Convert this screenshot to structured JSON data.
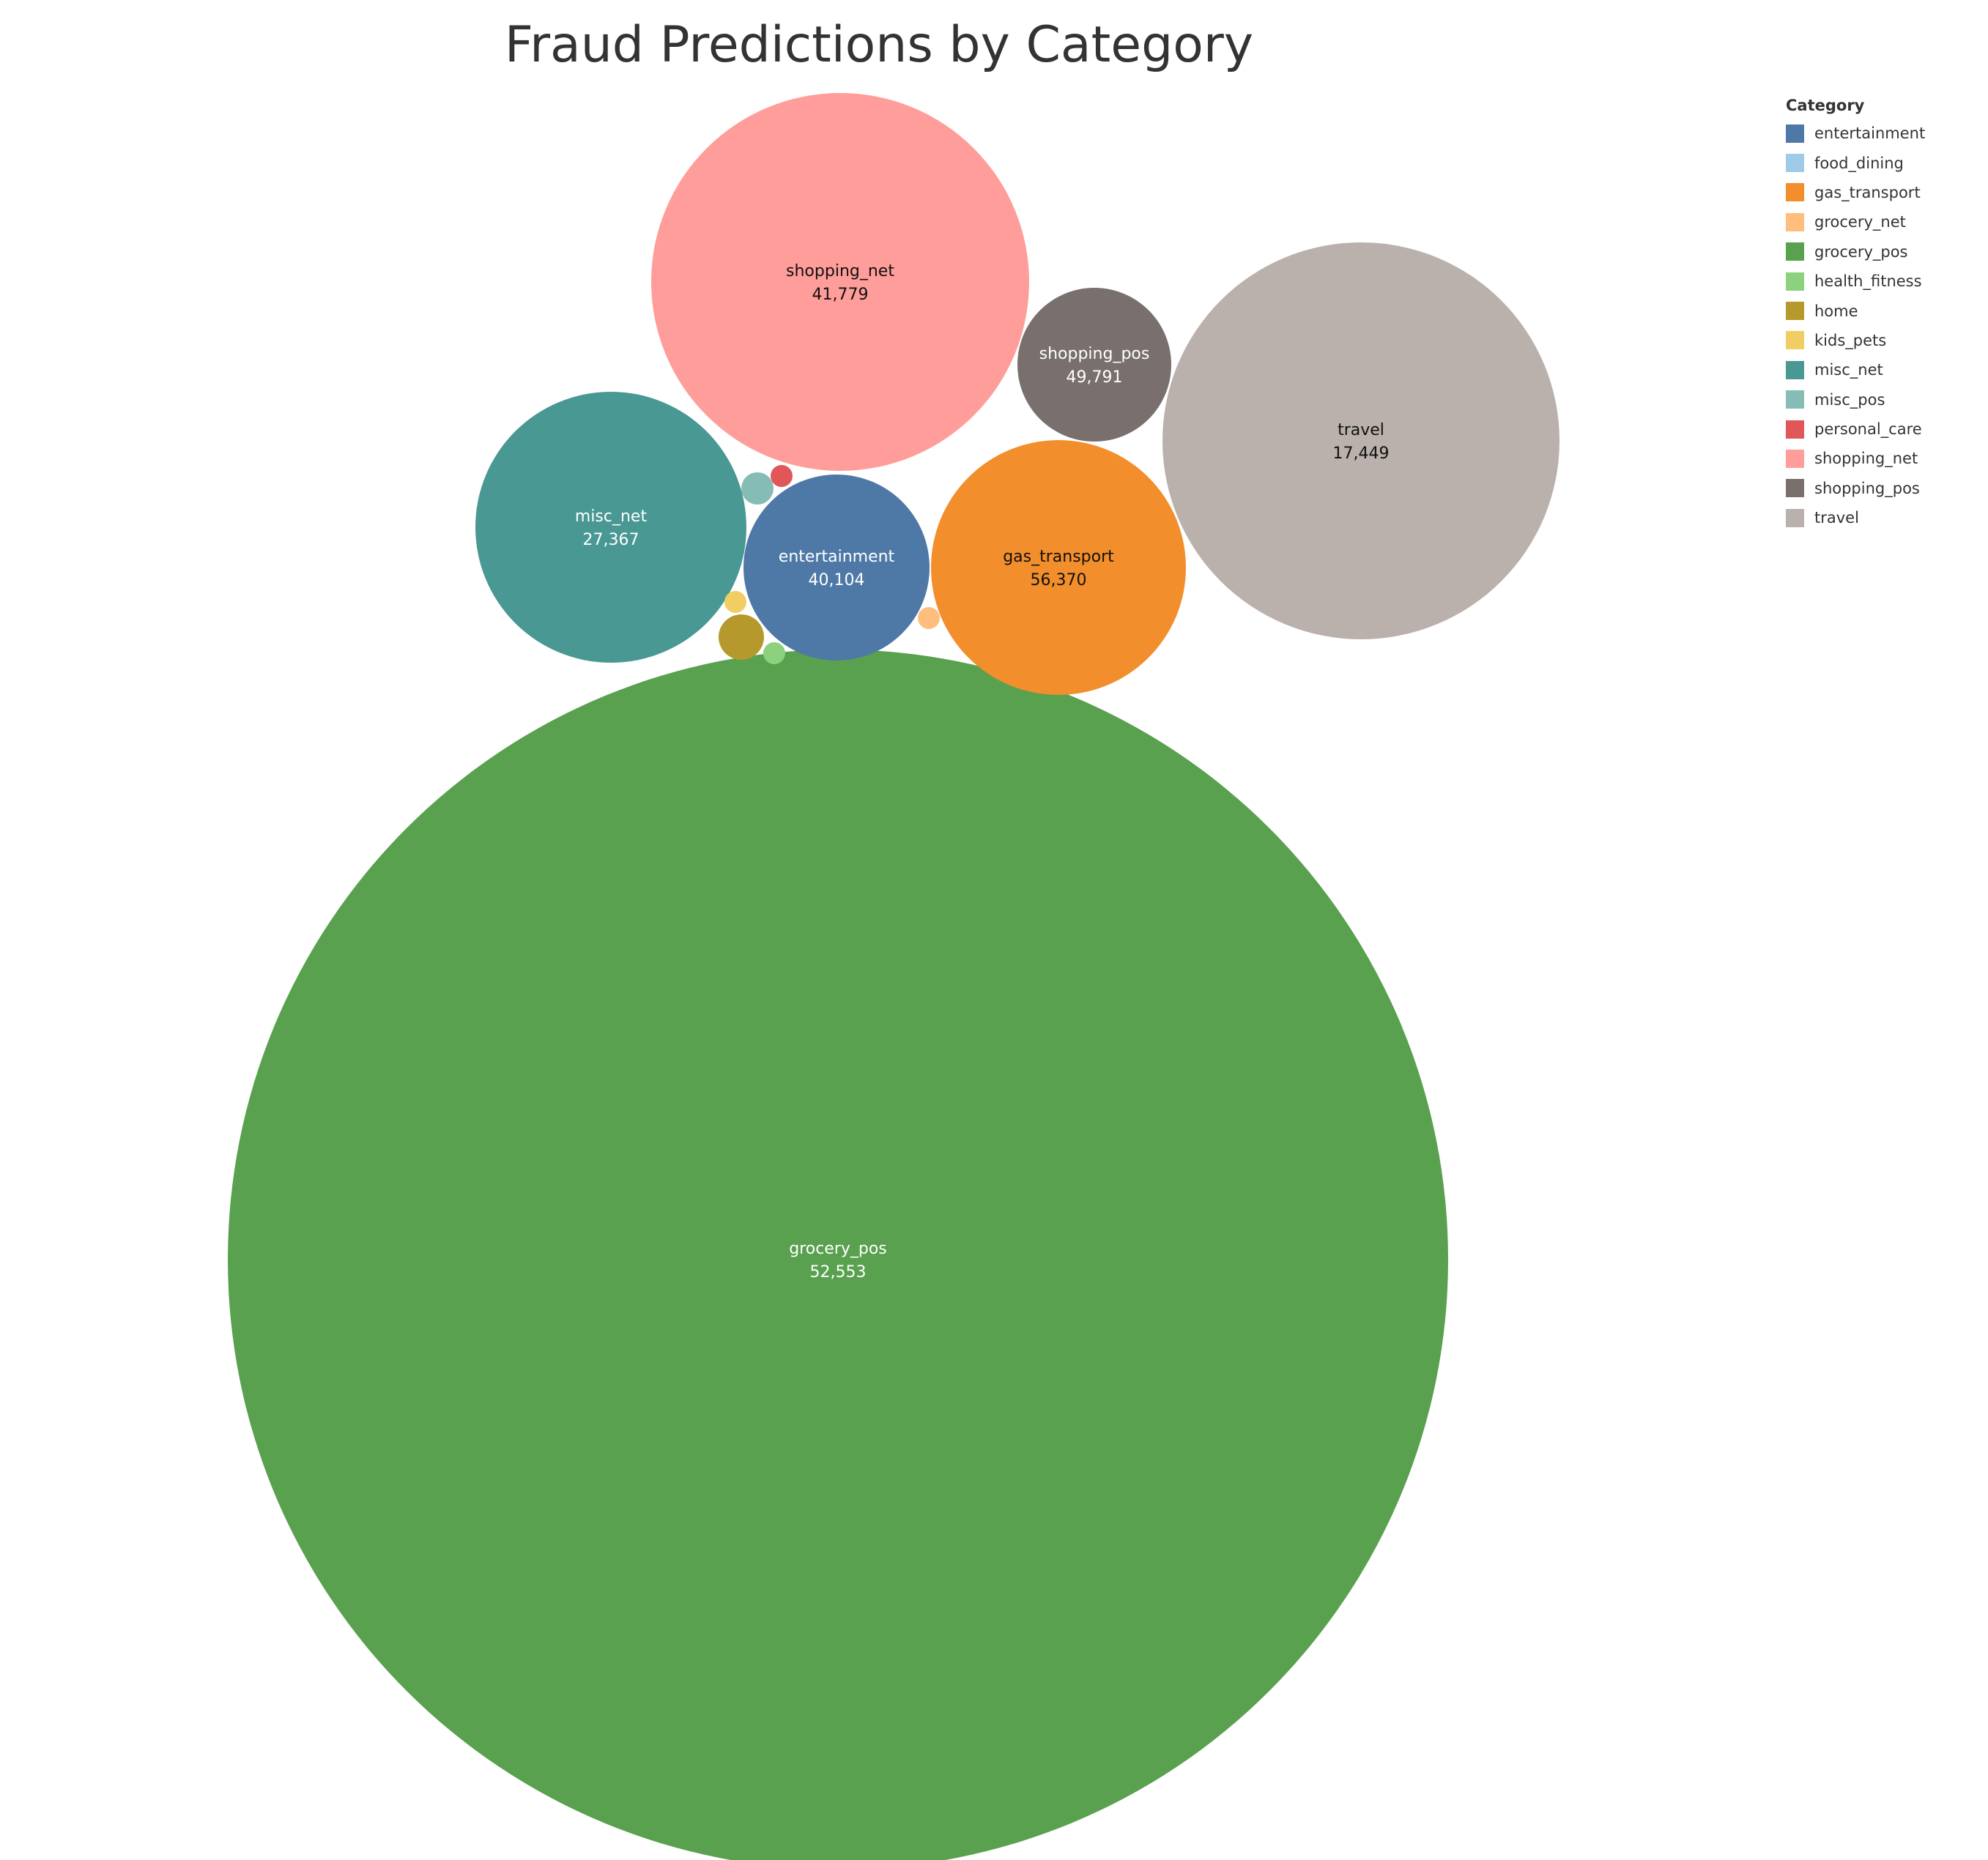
{
  "chart_data": {
    "type": "bubble",
    "title": "Fraud Predictions by Category",
    "legend_title": "Category",
    "legend_position": "top-right",
    "grid": false,
    "categories": [
      {
        "name": "entertainment",
        "color": "#4e79a7",
        "value": 40104,
        "label": "40,104",
        "text_color": "#ffffff"
      },
      {
        "name": "food_dining",
        "color": "#a0cbe8",
        "value": null,
        "label": "",
        "text_color": "#333333"
      },
      {
        "name": "gas_transport",
        "color": "#f28e2b",
        "value": 56370,
        "label": "56,370",
        "text_color": "#111111"
      },
      {
        "name": "grocery_net",
        "color": "#ffbe7d",
        "value": null,
        "label": "",
        "text_color": "#333333"
      },
      {
        "name": "grocery_pos",
        "color": "#59a14f",
        "value": 52553,
        "label": "52,553",
        "text_color": "#ffffff"
      },
      {
        "name": "health_fitness",
        "color": "#8cd17d",
        "value": null,
        "label": "",
        "text_color": "#333333"
      },
      {
        "name": "home",
        "color": "#b6992d",
        "value": null,
        "label": "",
        "text_color": "#333333"
      },
      {
        "name": "kids_pets",
        "color": "#f1ce63",
        "value": null,
        "label": "",
        "text_color": "#333333"
      },
      {
        "name": "misc_net",
        "color": "#499894",
        "value": 27367,
        "label": "27,367",
        "text_color": "#ffffff"
      },
      {
        "name": "misc_pos",
        "color": "#86bcb6",
        "value": null,
        "label": "",
        "text_color": "#333333"
      },
      {
        "name": "personal_care",
        "color": "#e15759",
        "value": null,
        "label": "",
        "text_color": "#333333"
      },
      {
        "name": "shopping_net",
        "color": "#ff9d9a",
        "value": 41779,
        "label": "41,779",
        "text_color": "#111111"
      },
      {
        "name": "shopping_pos",
        "color": "#79706e",
        "value": 49791,
        "label": "49,791",
        "text_color": "#ffffff"
      },
      {
        "name": "travel",
        "color": "#bab0ac",
        "value": 17449,
        "label": "17,449",
        "text_color": "#111111"
      }
    ]
  }
}
